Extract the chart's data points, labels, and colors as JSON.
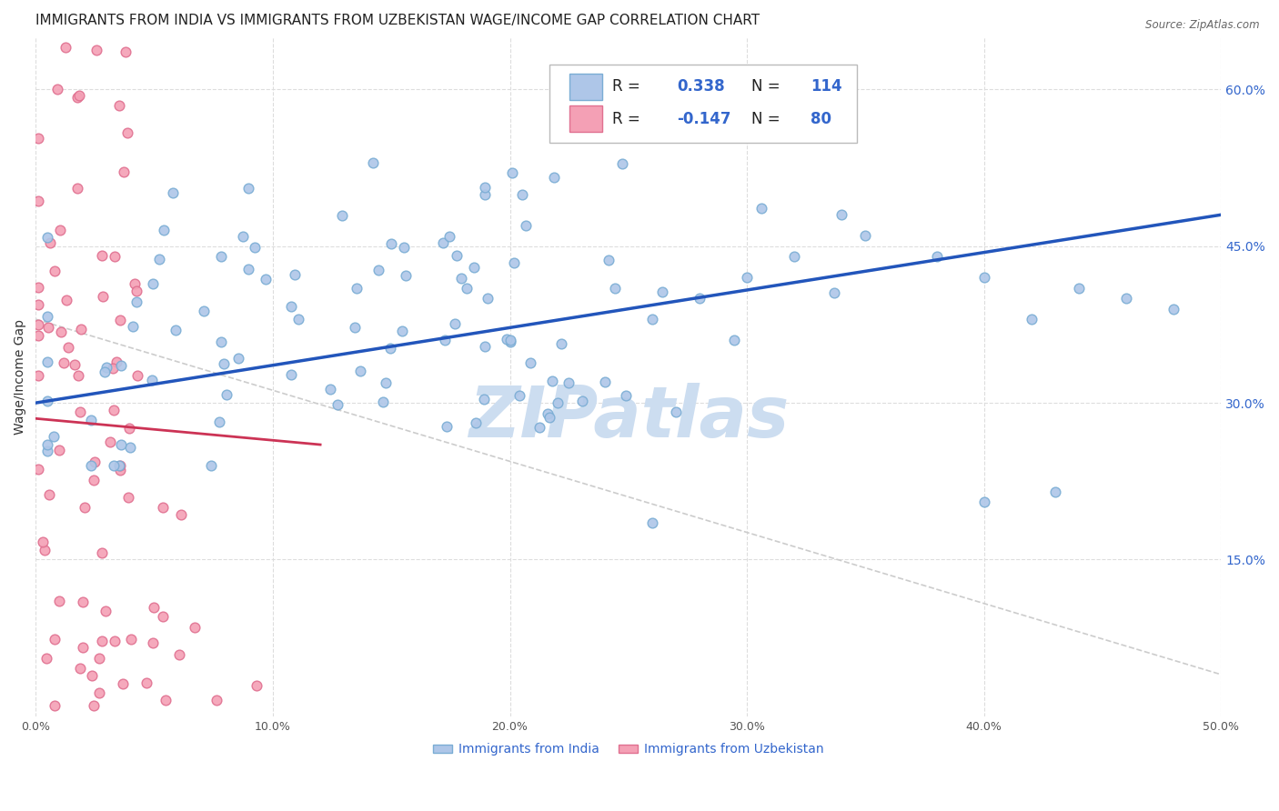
{
  "title": "IMMIGRANTS FROM INDIA VS IMMIGRANTS FROM UZBEKISTAN WAGE/INCOME GAP CORRELATION CHART",
  "source": "Source: ZipAtlas.com",
  "ylabel": "Wage/Income Gap",
  "x_min": 0.0,
  "x_max": 0.5,
  "y_min": 0.0,
  "y_max": 0.65,
  "x_ticks": [
    0.0,
    0.1,
    0.2,
    0.3,
    0.4,
    0.5
  ],
  "x_tick_labels": [
    "0.0%",
    "10.0%",
    "20.0%",
    "30.0%",
    "40.0%",
    "50.0%"
  ],
  "y_ticks": [
    0.15,
    0.3,
    0.45,
    0.6
  ],
  "y_tick_labels": [
    "15.0%",
    "30.0%",
    "45.0%",
    "60.0%"
  ],
  "india_color": "#aec6e8",
  "india_edge_color": "#7aadd4",
  "uzbekistan_color": "#f4a0b5",
  "uzbekistan_edge_color": "#e07090",
  "india_R": 0.338,
  "india_N": 114,
  "uzbekistan_R": -0.147,
  "uzbekistan_N": 80,
  "india_line_color": "#2255bb",
  "uzbekistan_line_color": "#cc3355",
  "diag_color": "#cccccc",
  "marker_size": 60,
  "background_color": "#ffffff",
  "grid_color": "#dddddd",
  "watermark_text": "ZIPatlas",
  "watermark_color": "#ccddf0",
  "title_fontsize": 11,
  "axis_label_fontsize": 10,
  "tick_fontsize": 9,
  "legend_fontsize": 12
}
